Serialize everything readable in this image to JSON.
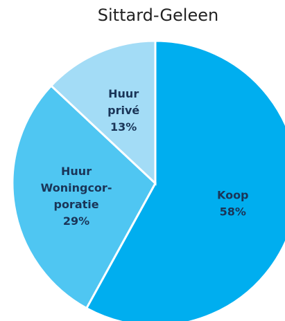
{
  "chart_data": {
    "type": "pie",
    "title": "Sittard-Geleen",
    "categories": [
      [
        "Koop"
      ],
      [
        "Huur",
        "Woningcor-",
        "poratie"
      ],
      [
        "Huur",
        "privé"
      ]
    ],
    "values": [
      58,
      29,
      13
    ],
    "value_labels": [
      "58%",
      "29%",
      "13%"
    ],
    "colors": [
      "#00aeef",
      "#4fc6f2",
      "#a3dcf6"
    ]
  }
}
